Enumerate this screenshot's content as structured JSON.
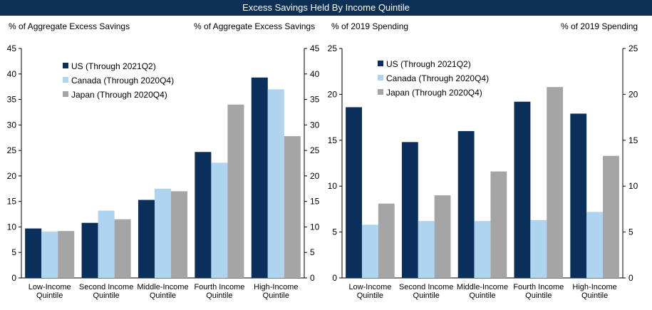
{
  "title": "Excess Savings Held By Income Quintile",
  "colors": {
    "title_bg": "#0e2f56",
    "us": "#0b2f5b",
    "canada": "#aed4f0",
    "japan": "#a5a5a5"
  },
  "chart_data": [
    {
      "type": "bar",
      "left_ylabel": "% of Aggregate Excess Savings",
      "right_ylabel": "% of Aggregate Excess Savings",
      "ylim": [
        0,
        45
      ],
      "yticks": [
        0,
        5,
        10,
        15,
        20,
        25,
        30,
        35,
        40,
        45
      ],
      "categories": [
        [
          "Low-Income",
          "Quintile"
        ],
        [
          "Second Income",
          "Quintile"
        ],
        [
          "Middle-Income",
          "Quintile"
        ],
        [
          "Fourth Income",
          "Quintile"
        ],
        [
          "High-Income",
          "Quintile"
        ]
      ],
      "series": [
        {
          "name": "US (Through 2021Q2)",
          "color_key": "us",
          "values": [
            9.7,
            10.8,
            15.3,
            24.7,
            39.3
          ]
        },
        {
          "name": "Canada (Through 2020Q4)",
          "color_key": "canada",
          "values": [
            9.1,
            13.2,
            17.5,
            22.6,
            37.0
          ]
        },
        {
          "name": "Japan (Through 2020Q4)",
          "color_key": "japan",
          "values": [
            9.2,
            11.5,
            17.0,
            34.0,
            27.8
          ]
        }
      ],
      "legend": "top-left"
    },
    {
      "type": "bar",
      "left_ylabel": "% of 2019 Spending",
      "right_ylabel": "% of 2019 Spending",
      "ylim": [
        0,
        25
      ],
      "yticks": [
        0,
        5,
        10,
        15,
        20,
        25
      ],
      "categories": [
        [
          "Low-Income",
          "Quintile"
        ],
        [
          "Second Income",
          "Quintile"
        ],
        [
          "Middle-Income",
          "Quintile"
        ],
        [
          "Fourth Income",
          "Quintile"
        ],
        [
          "High-Income",
          "Quintile"
        ]
      ],
      "series": [
        {
          "name": "US (Through 2021Q2)",
          "color_key": "us",
          "values": [
            18.6,
            14.8,
            16.0,
            19.2,
            17.9
          ]
        },
        {
          "name": "Canada (Through 2020Q4)",
          "color_key": "canada",
          "values": [
            5.8,
            6.2,
            6.2,
            6.3,
            7.2
          ]
        },
        {
          "name": "Japan (Through 2020Q4)",
          "color_key": "japan",
          "values": [
            8.1,
            9.0,
            11.6,
            20.8,
            13.3
          ]
        }
      ],
      "legend": "top-left"
    }
  ]
}
